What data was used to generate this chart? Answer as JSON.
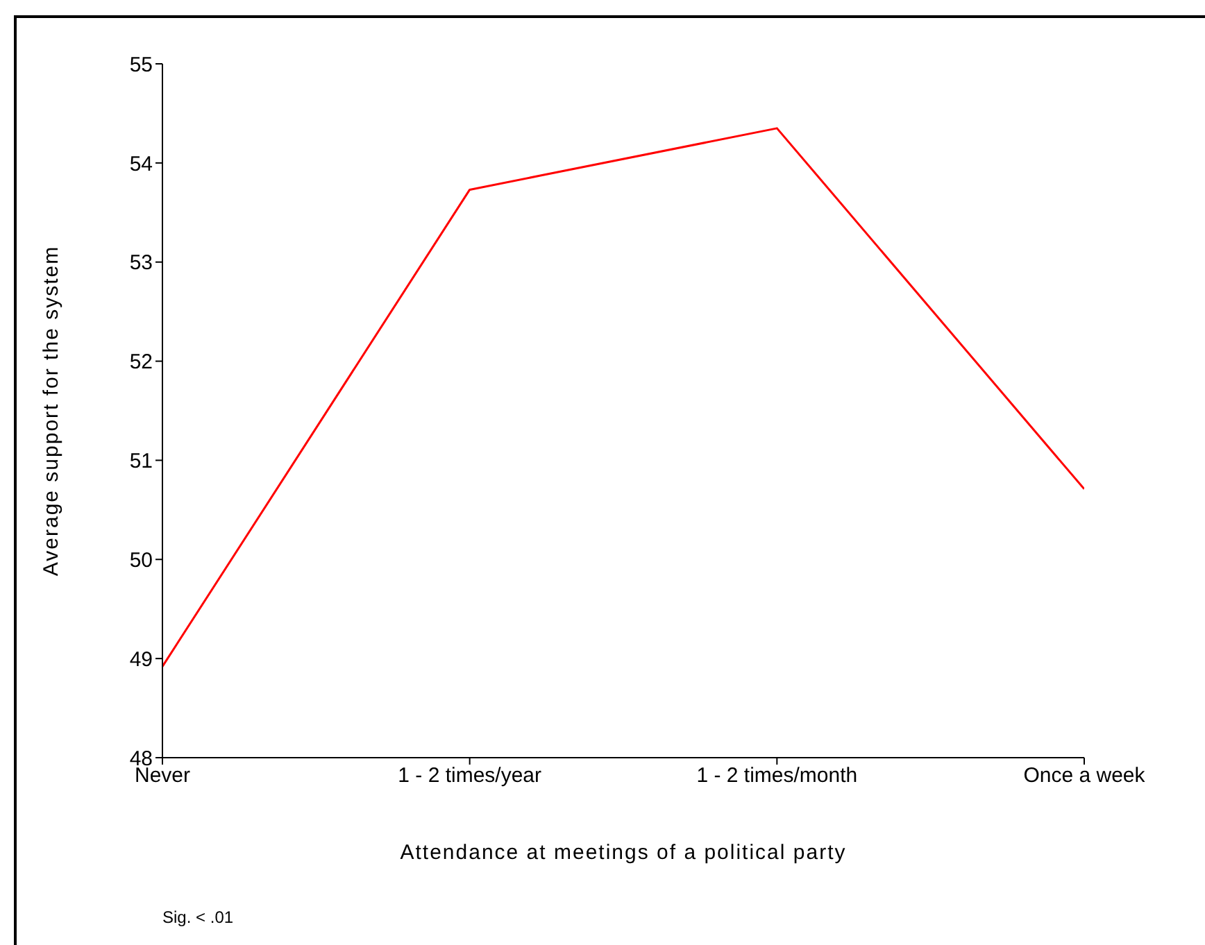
{
  "chart_data": {
    "type": "line",
    "xlabel": "Attendance at meetings of a political party",
    "ylabel": "Average support for the system",
    "categories": [
      "Never",
      "1 - 2 times/year",
      "1 - 2 times/month",
      "Once a week"
    ],
    "series": [
      {
        "color": "#ff0000",
        "values": [
          48.92,
          53.73,
          54.35,
          50.71
        ]
      }
    ],
    "ylim": [
      48,
      55
    ],
    "yticks": [
      48,
      49,
      50,
      51,
      52,
      53,
      54,
      55
    ],
    "grid": false,
    "legend": false,
    "marker": "none",
    "annotations": [
      "Sig. < .01"
    ]
  }
}
